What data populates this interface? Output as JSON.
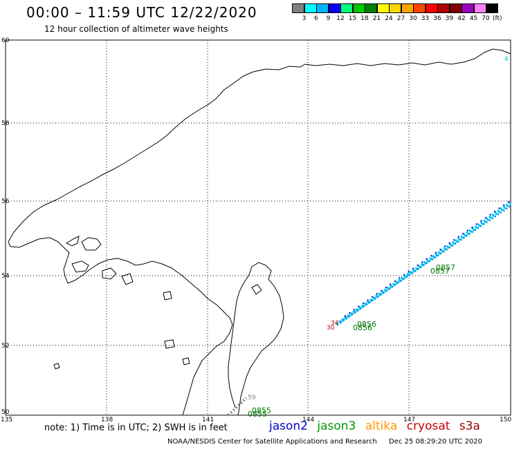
{
  "title": "00:00 – 11:59 UTC 12/22/2020",
  "subtitle": "12 hour collection of altimeter wave heights",
  "scale": {
    "labels": [
      "3",
      "6",
      "9",
      "12",
      "15",
      "18",
      "21",
      "24",
      "27",
      "30",
      "33",
      "36",
      "39",
      "42",
      "45",
      "70"
    ],
    "unit": "(ft)",
    "colors": [
      "#808080",
      "#00ffff",
      "#00b4ff",
      "#0000ff",
      "#00ff80",
      "#00c800",
      "#008000",
      "#ffff00",
      "#ffd700",
      "#ffa500",
      "#ff4500",
      "#ff0000",
      "#b00000",
      "#800000",
      "#a000c0",
      "#ff80ff",
      "#000000"
    ]
  },
  "axes": {
    "lat_labels": [
      "60",
      "58",
      "56",
      "54",
      "52",
      "50"
    ],
    "lon_labels": [
      "135",
      "138",
      "141",
      "144",
      "147",
      "150"
    ]
  },
  "note": "note: 1) Time is in UTC; 2) SWH is in feet",
  "satellites": [
    {
      "name": "jason2",
      "color": "#0000c8"
    },
    {
      "name": "jason3",
      "color": "#009600"
    },
    {
      "name": "altika",
      "color": "#ff9600"
    },
    {
      "name": "cryosat",
      "color": "#c80000"
    },
    {
      "name": "s3a",
      "color": "#960000"
    }
  ],
  "footer": {
    "credit": "NOAA/NESDIS Center for Satellite Applications and Research",
    "timestamp": "Dec 25 08:29:20 UTC 2020"
  },
  "map_labels": {
    "time_labels": [
      {
        "text": "0857",
        "color": "#007800"
      },
      {
        "text": "0857",
        "color": "#007800"
      },
      {
        "text": "0856",
        "color": "#007800"
      },
      {
        "text": "0856",
        "color": "#007800"
      },
      {
        "text": "0855",
        "color": "#007800"
      },
      {
        "text": "0855",
        "color": "#007800"
      }
    ],
    "cryosat_values": [
      {
        "text": "34",
        "color": "#c80000"
      },
      {
        "text": "30",
        "color": "#c80000"
      }
    ],
    "edge_value": {
      "text": "4",
      "color": "#00c8c8"
    },
    "gray_values": {
      "text": "59",
      "color": "#808080"
    }
  }
}
